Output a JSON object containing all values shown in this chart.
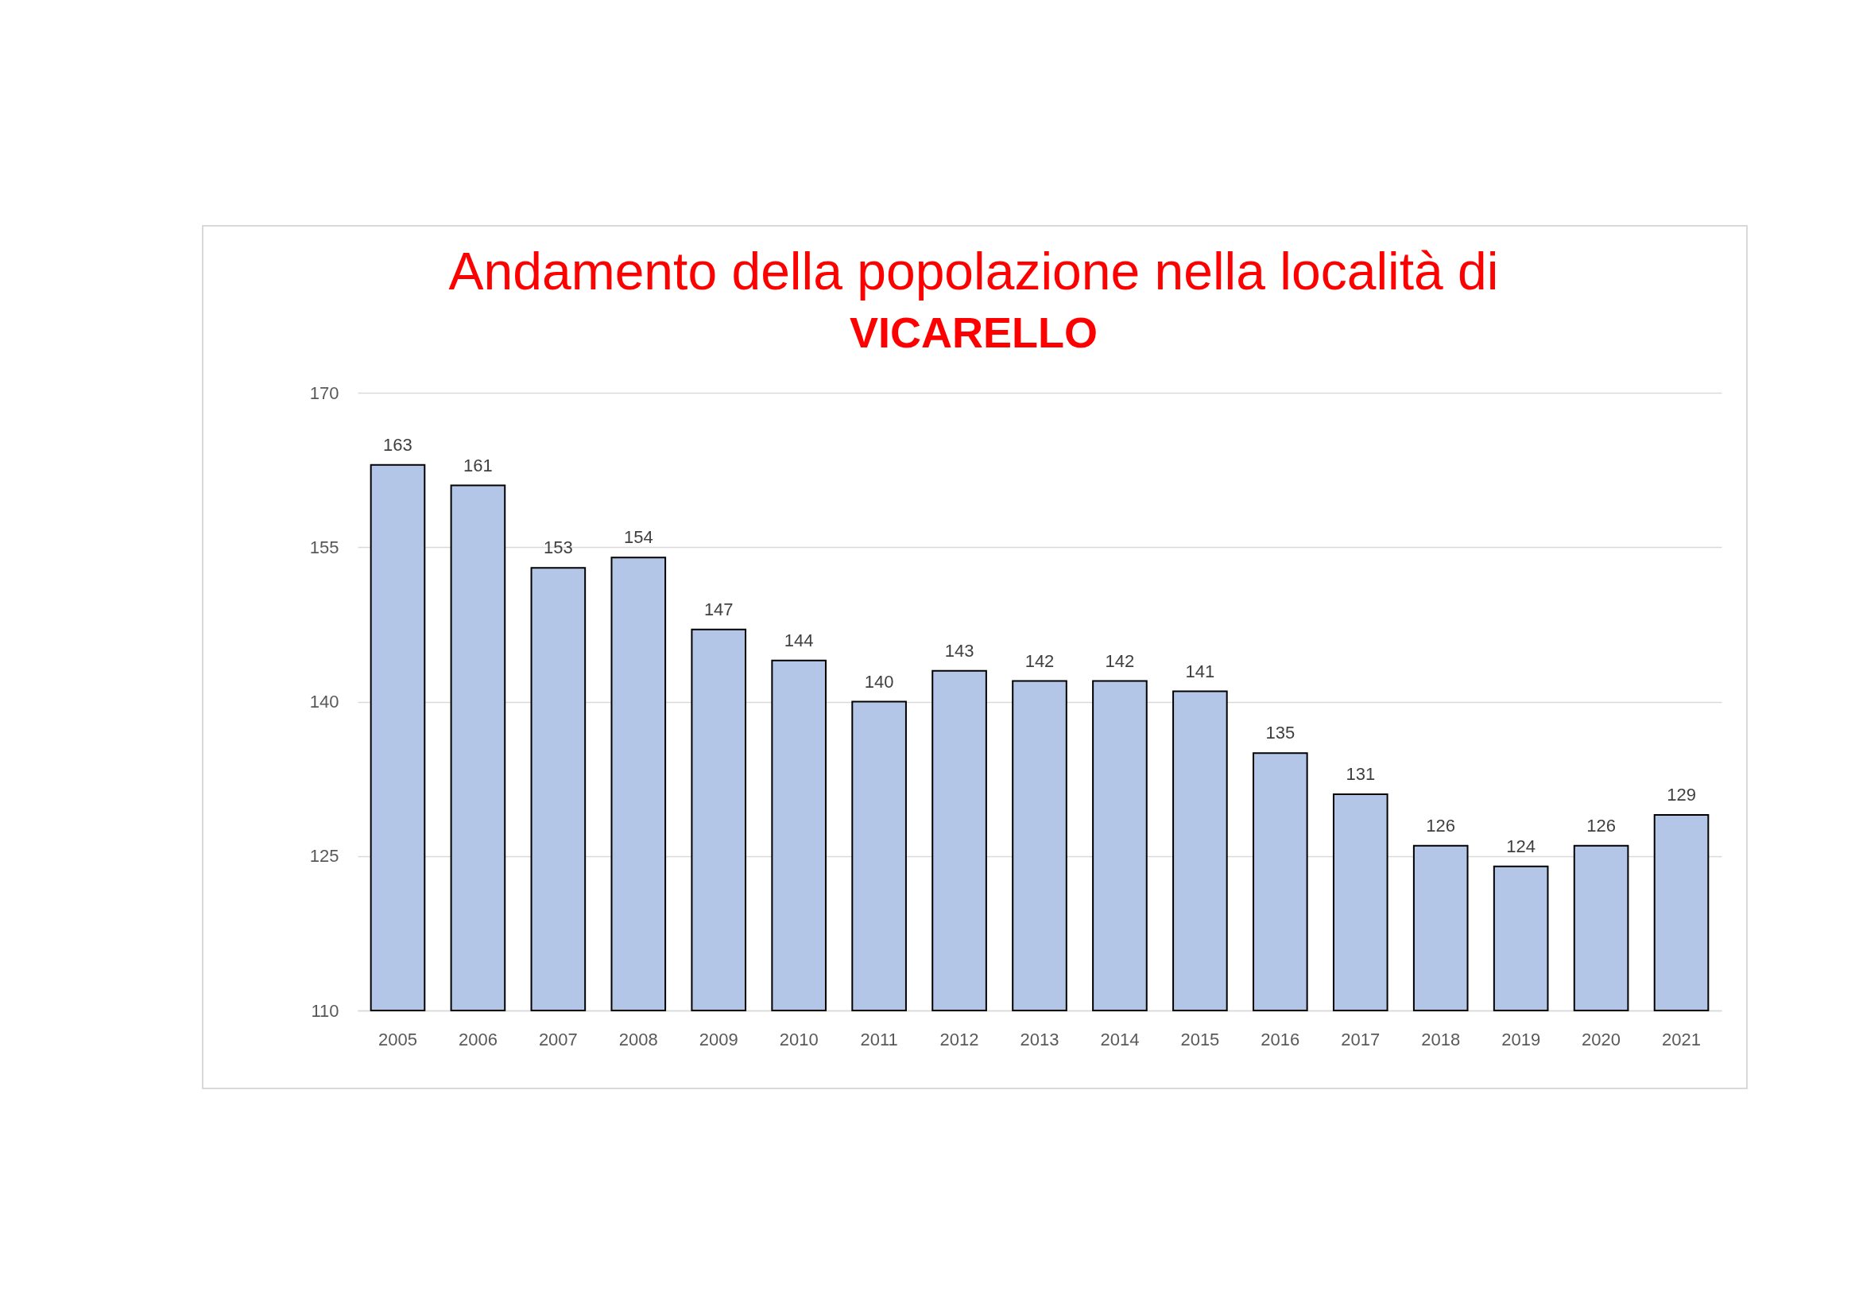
{
  "chart_data": {
    "type": "bar",
    "title": "Andamento della popolazione nella località di",
    "subtitle": "VICARELLO",
    "categories": [
      "2005",
      "2006",
      "2007",
      "2008",
      "2009",
      "2010",
      "2011",
      "2012",
      "2013",
      "2014",
      "2015",
      "2016",
      "2017",
      "2018",
      "2019",
      "2020",
      "2021"
    ],
    "values": [
      163,
      161,
      153,
      154,
      147,
      144,
      140,
      143,
      142,
      142,
      141,
      135,
      131,
      126,
      124,
      126,
      129
    ],
    "color": "#b4c6e7",
    "ylim": [
      110,
      170
    ],
    "yticks": [
      110,
      125,
      140,
      155,
      170
    ],
    "grid": "y",
    "data_labels": true
  }
}
